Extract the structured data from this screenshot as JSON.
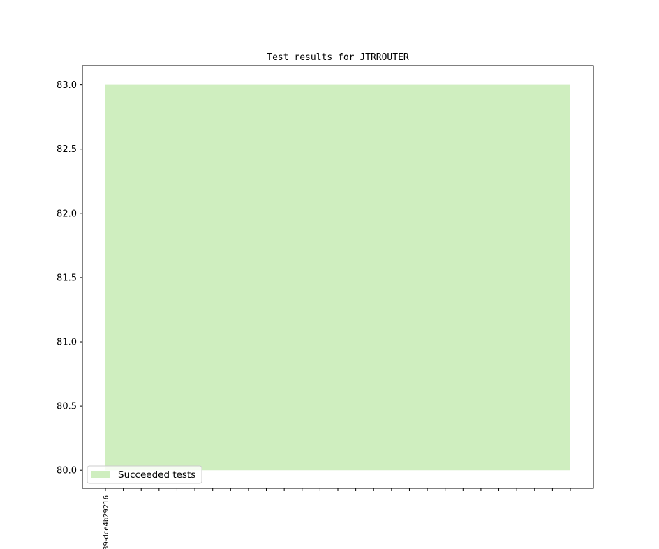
{
  "chart_data": {
    "type": "area",
    "title": "Test results for JTRROUTER",
    "xlabel": "",
    "ylabel": "",
    "categories": [
      "39-dce4b29216",
      "",
      "",
      "",
      "",
      "",
      "",
      "",
      "",
      "",
      "",
      "",
      "",
      "",
      "",
      "",
      "",
      "",
      "",
      "",
      "",
      "",
      "",
      "",
      "",
      "",
      ""
    ],
    "series": [
      {
        "name": "Succeeded tests",
        "color": "#cfeebf",
        "values": [
          83,
          83,
          83,
          83,
          83,
          83,
          83,
          83,
          83,
          83,
          83,
          83,
          83,
          83,
          83,
          83,
          83,
          83,
          83,
          83,
          83,
          83,
          83,
          83,
          83,
          83,
          83
        ]
      }
    ],
    "baseline": 80,
    "ylim": [
      79.86,
      83.15
    ],
    "yticks": [
      "80.0",
      "80.5",
      "81.0",
      "81.5",
      "82.0",
      "82.5",
      "83.0"
    ],
    "grid": false,
    "legend": "lower-left"
  }
}
